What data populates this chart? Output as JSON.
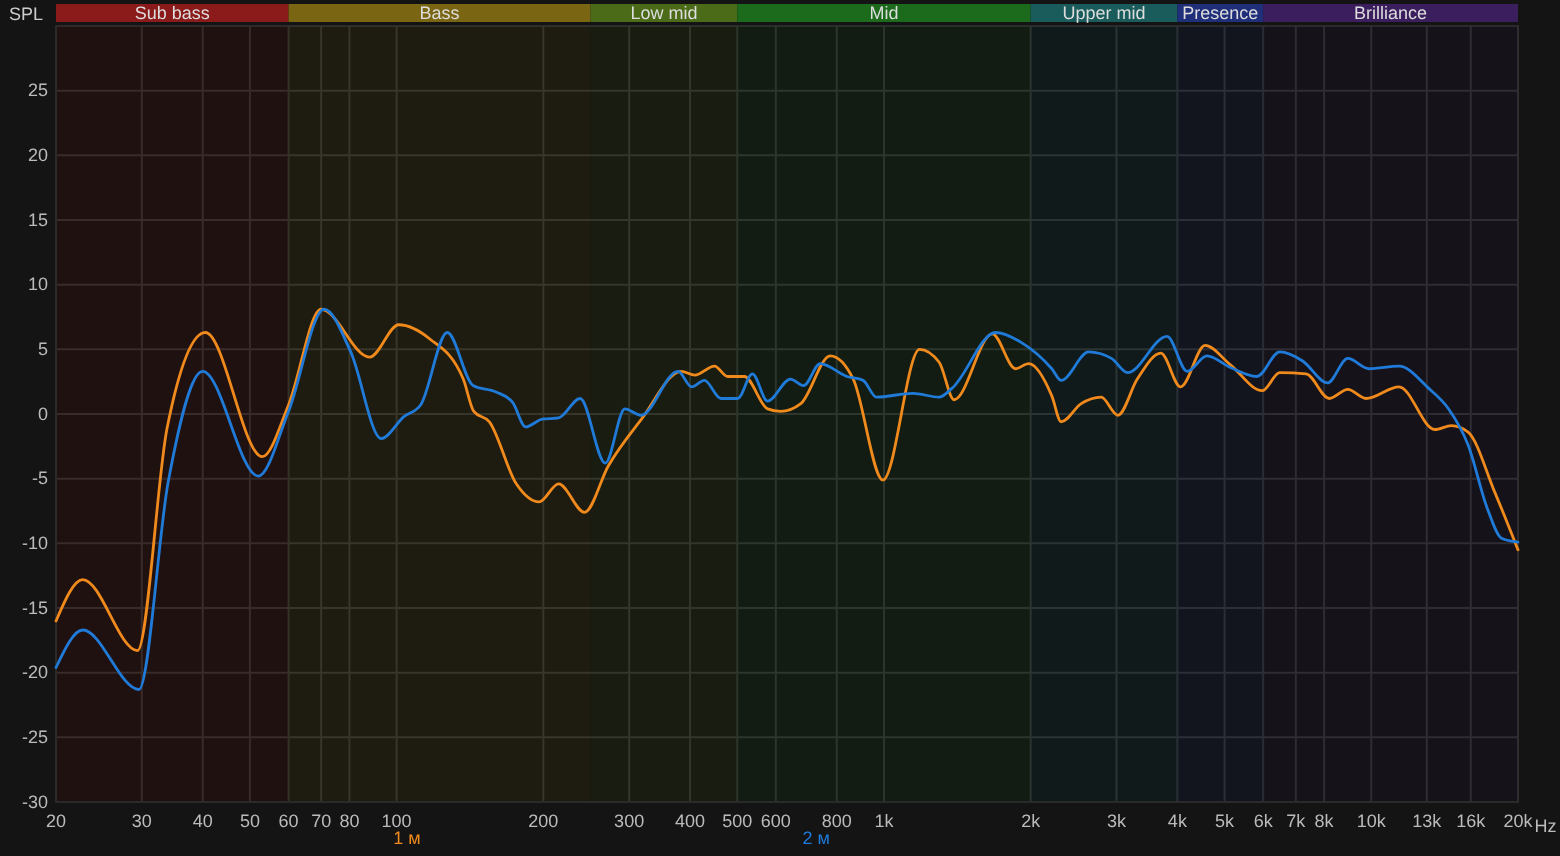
{
  "chart_data": {
    "type": "line",
    "ylabel": "SPL",
    "log": "x",
    "grid": true,
    "legend": "bottom",
    "line_style": "solid",
    "marker": "none",
    "xlim": [
      20,
      20000
    ],
    "ylim": [
      -30,
      30
    ],
    "xticks": [
      20,
      30,
      40,
      50,
      60,
      70,
      80,
      100,
      200,
      300,
      400,
      500,
      600,
      800,
      {
        "value": 1000,
        "label": "1k"
      },
      {
        "value": 2000,
        "label": "2k"
      },
      {
        "value": 3000,
        "label": "3k"
      },
      {
        "value": 4000,
        "label": "4k"
      },
      {
        "value": 5000,
        "label": "5k"
      },
      {
        "value": 6000,
        "label": "6k"
      },
      {
        "value": 7000,
        "label": "7k"
      },
      {
        "value": 8000,
        "label": "8k"
      },
      {
        "value": 10000,
        "label": "10k"
      },
      {
        "value": 13000,
        "label": "13k"
      },
      {
        "value": 16000,
        "label": "16k"
      },
      {
        "value": 20000,
        "label": "20k"
      }
    ],
    "xlabel": "Hz",
    "yticks": [
      -30,
      -25,
      -20,
      -15,
      -10,
      -5,
      0,
      5,
      10,
      15,
      20,
      25
    ],
    "bands": [
      {
        "axis": "x",
        "from": 20,
        "to": 60,
        "label": "Sub bass",
        "color": "#8b1a1a"
      },
      {
        "axis": "x",
        "from": 60,
        "to": 250,
        "label": "Bass",
        "color": "#7a6512"
      },
      {
        "axis": "x",
        "from": 250,
        "to": 500,
        "label": "Low mid",
        "color": "#4b6b18"
      },
      {
        "axis": "x",
        "from": 500,
        "to": 2000,
        "label": "Mid",
        "color": "#1c6b1c"
      },
      {
        "axis": "x",
        "from": 2000,
        "to": 4000,
        "label": "Upper mid",
        "color": "#1a5c5c"
      },
      {
        "axis": "x",
        "from": 4000,
        "to": 6000,
        "label": "Presence",
        "color": "#1f2f7a"
      },
      {
        "axis": "x",
        "from": 6000,
        "to": 20000,
        "label": "Brilliance",
        "color": "#3b1e5e"
      }
    ],
    "series": [
      {
        "name": "1 м",
        "color": "#f08a1c",
        "x": [
          20,
          22.7,
          29.4,
          33.8,
          40.5,
          53,
          60,
          70,
          88,
          101,
          117,
          137,
          144,
          155,
          176,
          196,
          215,
          243,
          272,
          318,
          384,
          409,
          449,
          478,
          517,
          577,
          614,
          675,
          776,
          865,
          995,
          1183,
          1298,
          1393,
          1668,
          1862,
          1981,
          2210,
          2310,
          2540,
          2790,
          3020,
          3310,
          3700,
          4060,
          4560,
          5140,
          5970,
          6490,
          7350,
          8200,
          8950,
          9750,
          11400,
          13500,
          14600,
          15800,
          17900,
          20000
        ],
        "values": [
          -16,
          -12.8,
          -18.3,
          -1.1,
          6.3,
          -3.3,
          0.7,
          8.1,
          4.4,
          6.9,
          5.8,
          2.7,
          0.2,
          -0.6,
          -5.4,
          -6.8,
          -5.4,
          -7.6,
          -4,
          -0.4,
          3.3,
          3,
          3.7,
          2.9,
          2.9,
          0.4,
          0.2,
          0.8,
          4.5,
          2.7,
          -5.1,
          5,
          4,
          1.1,
          6.2,
          3.5,
          3.9,
          1.4,
          -0.6,
          0.8,
          1.3,
          -0.1,
          2.7,
          4.7,
          2.1,
          5.3,
          3.8,
          1.8,
          3.2,
          3.1,
          1.2,
          1.9,
          1.2,
          2.1,
          -1.2,
          -0.9,
          -1.4,
          -6,
          -10.5
        ]
      },
      {
        "name": "2 м",
        "color": "#1f7ad8",
        "x": [
          20,
          22.7,
          29.6,
          34,
          40,
          52,
          60,
          71,
          80.5,
          93,
          103.5,
          112,
          127,
          143.5,
          160,
          173,
          184,
          199,
          215,
          238,
          268,
          294,
          317,
          378,
          403,
          428,
          463,
          501,
          537,
          577,
          643,
          684,
          740,
          839,
          906,
          965,
          1146,
          1298,
          1380,
          1695,
          1919,
          2210,
          2310,
          2630,
          2930,
          3160,
          3810,
          4190,
          4600,
          5140,
          5820,
          6490,
          7230,
          8130,
          8950,
          9890,
          11400,
          13100,
          14400,
          15800,
          17300,
          18500,
          20000
        ],
        "values": [
          -19.6,
          -16.7,
          -21.3,
          -5.2,
          3.3,
          -4.8,
          0.2,
          8.1,
          4.8,
          -1.9,
          -0.2,
          0.7,
          6.3,
          2.2,
          1.7,
          0.9,
          -1,
          -0.4,
          -0.3,
          1.2,
          -3.8,
          0.4,
          -0.1,
          3.3,
          2.1,
          2.6,
          1.2,
          1.2,
          3.1,
          1,
          2.7,
          2.2,
          3.9,
          2.9,
          2.6,
          1.3,
          1.6,
          1.3,
          2,
          6.3,
          5.5,
          3.5,
          2.6,
          4.8,
          4.3,
          3.2,
          6,
          3.3,
          4.5,
          3.6,
          2.9,
          4.8,
          4.1,
          2.4,
          4.3,
          3.5,
          3.7,
          2,
          0.4,
          -2.4,
          -7.3,
          -9.6,
          -9.9
        ]
      }
    ]
  }
}
